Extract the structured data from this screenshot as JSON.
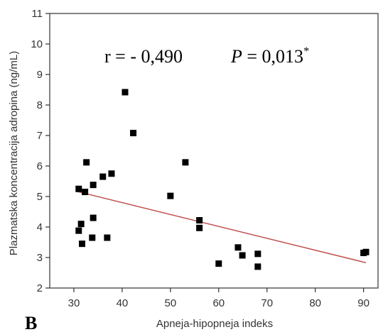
{
  "chart_data": {
    "type": "scatter",
    "xlabel": "Apneja-hipopneja indeks",
    "ylabel": "Plazmatska koncentracija adropina (ng/mL)",
    "xlim": [
      25,
      93
    ],
    "ylim": [
      2,
      11
    ],
    "xticks": [
      30,
      40,
      50,
      60,
      70,
      80,
      90
    ],
    "yticks": [
      2,
      3,
      4,
      5,
      6,
      7,
      8,
      9,
      10,
      11
    ],
    "grid": false,
    "annotation": {
      "r_text": "r = - 0,490",
      "p_label": "P",
      "p_text": " = 0,013",
      "p_sup": "*"
    },
    "panel_label": "B",
    "colors": {
      "points": "#000000",
      "trend": "#c0504d",
      "axis": "#333333"
    },
    "points": [
      {
        "x": 31.0,
        "y": 5.25
      },
      {
        "x": 31.0,
        "y": 3.88
      },
      {
        "x": 31.5,
        "y": 4.1
      },
      {
        "x": 31.7,
        "y": 3.45
      },
      {
        "x": 32.3,
        "y": 5.15
      },
      {
        "x": 32.6,
        "y": 6.12
      },
      {
        "x": 33.8,
        "y": 3.65
      },
      {
        "x": 34.0,
        "y": 4.3
      },
      {
        "x": 34.0,
        "y": 5.38
      },
      {
        "x": 36.0,
        "y": 5.65
      },
      {
        "x": 36.9,
        "y": 3.65
      },
      {
        "x": 37.8,
        "y": 5.75
      },
      {
        "x": 40.6,
        "y": 8.42
      },
      {
        "x": 42.3,
        "y": 7.08
      },
      {
        "x": 50.0,
        "y": 5.02
      },
      {
        "x": 53.1,
        "y": 6.12
      },
      {
        "x": 56.0,
        "y": 4.22
      },
      {
        "x": 56.0,
        "y": 3.97
      },
      {
        "x": 60.0,
        "y": 2.8
      },
      {
        "x": 64.0,
        "y": 3.33
      },
      {
        "x": 64.9,
        "y": 3.07
      },
      {
        "x": 68.1,
        "y": 3.12
      },
      {
        "x": 68.1,
        "y": 2.7
      },
      {
        "x": 90.0,
        "y": 3.15
      },
      {
        "x": 90.5,
        "y": 3.18
      }
    ],
    "trendline": {
      "x": [
        30.5,
        90.5
      ],
      "y": [
        5.17,
        2.83
      ]
    }
  }
}
